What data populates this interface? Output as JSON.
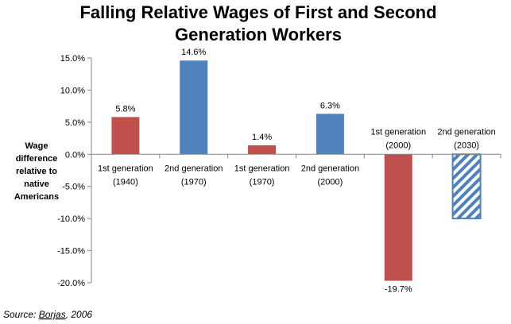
{
  "chart_data": {
    "type": "bar",
    "title": [
      "Falling Relative Wages of First and Second",
      "Generation Workers"
    ],
    "ylabel": [
      "Wage",
      "difference",
      "relative to",
      "native",
      "Americans"
    ],
    "xlabel": "",
    "ylim": [
      -20.0,
      15.0
    ],
    "yticks": [
      "15.0%",
      "10.0%",
      "5.0%",
      "0.0%",
      "-5.0%",
      "-10.0%",
      "-15.0%",
      "-20.0%"
    ],
    "ytick_values": [
      15,
      10,
      5,
      0,
      -5,
      -10,
      -15,
      -20
    ],
    "grid": false,
    "categories": [
      [
        "1st generation",
        "(1940)"
      ],
      [
        "2nd generation",
        "(1970)"
      ],
      [
        "1st generation",
        "(1970)"
      ],
      [
        "2nd generation",
        "(2000)"
      ],
      [
        "1st generation",
        "(2000)"
      ],
      [
        "2nd generation",
        "(2030)"
      ]
    ],
    "values": [
      5.8,
      14.6,
      1.4,
      6.3,
      -19.7,
      -10.0
    ],
    "data_labels": [
      "5.8%",
      "14.6%",
      "1.4%",
      "6.3%",
      "-19.7%",
      ""
    ],
    "bar_colors": [
      "#C0504D",
      "#4F81BD",
      "#C0504D",
      "#4F81BD",
      "#C0504D",
      "#4F81BD"
    ],
    "bar_styles": [
      "solid",
      "solid",
      "solid",
      "solid",
      "solid",
      "hatched"
    ],
    "source": [
      "Source: ",
      "Borjas",
      ", 2006"
    ]
  }
}
